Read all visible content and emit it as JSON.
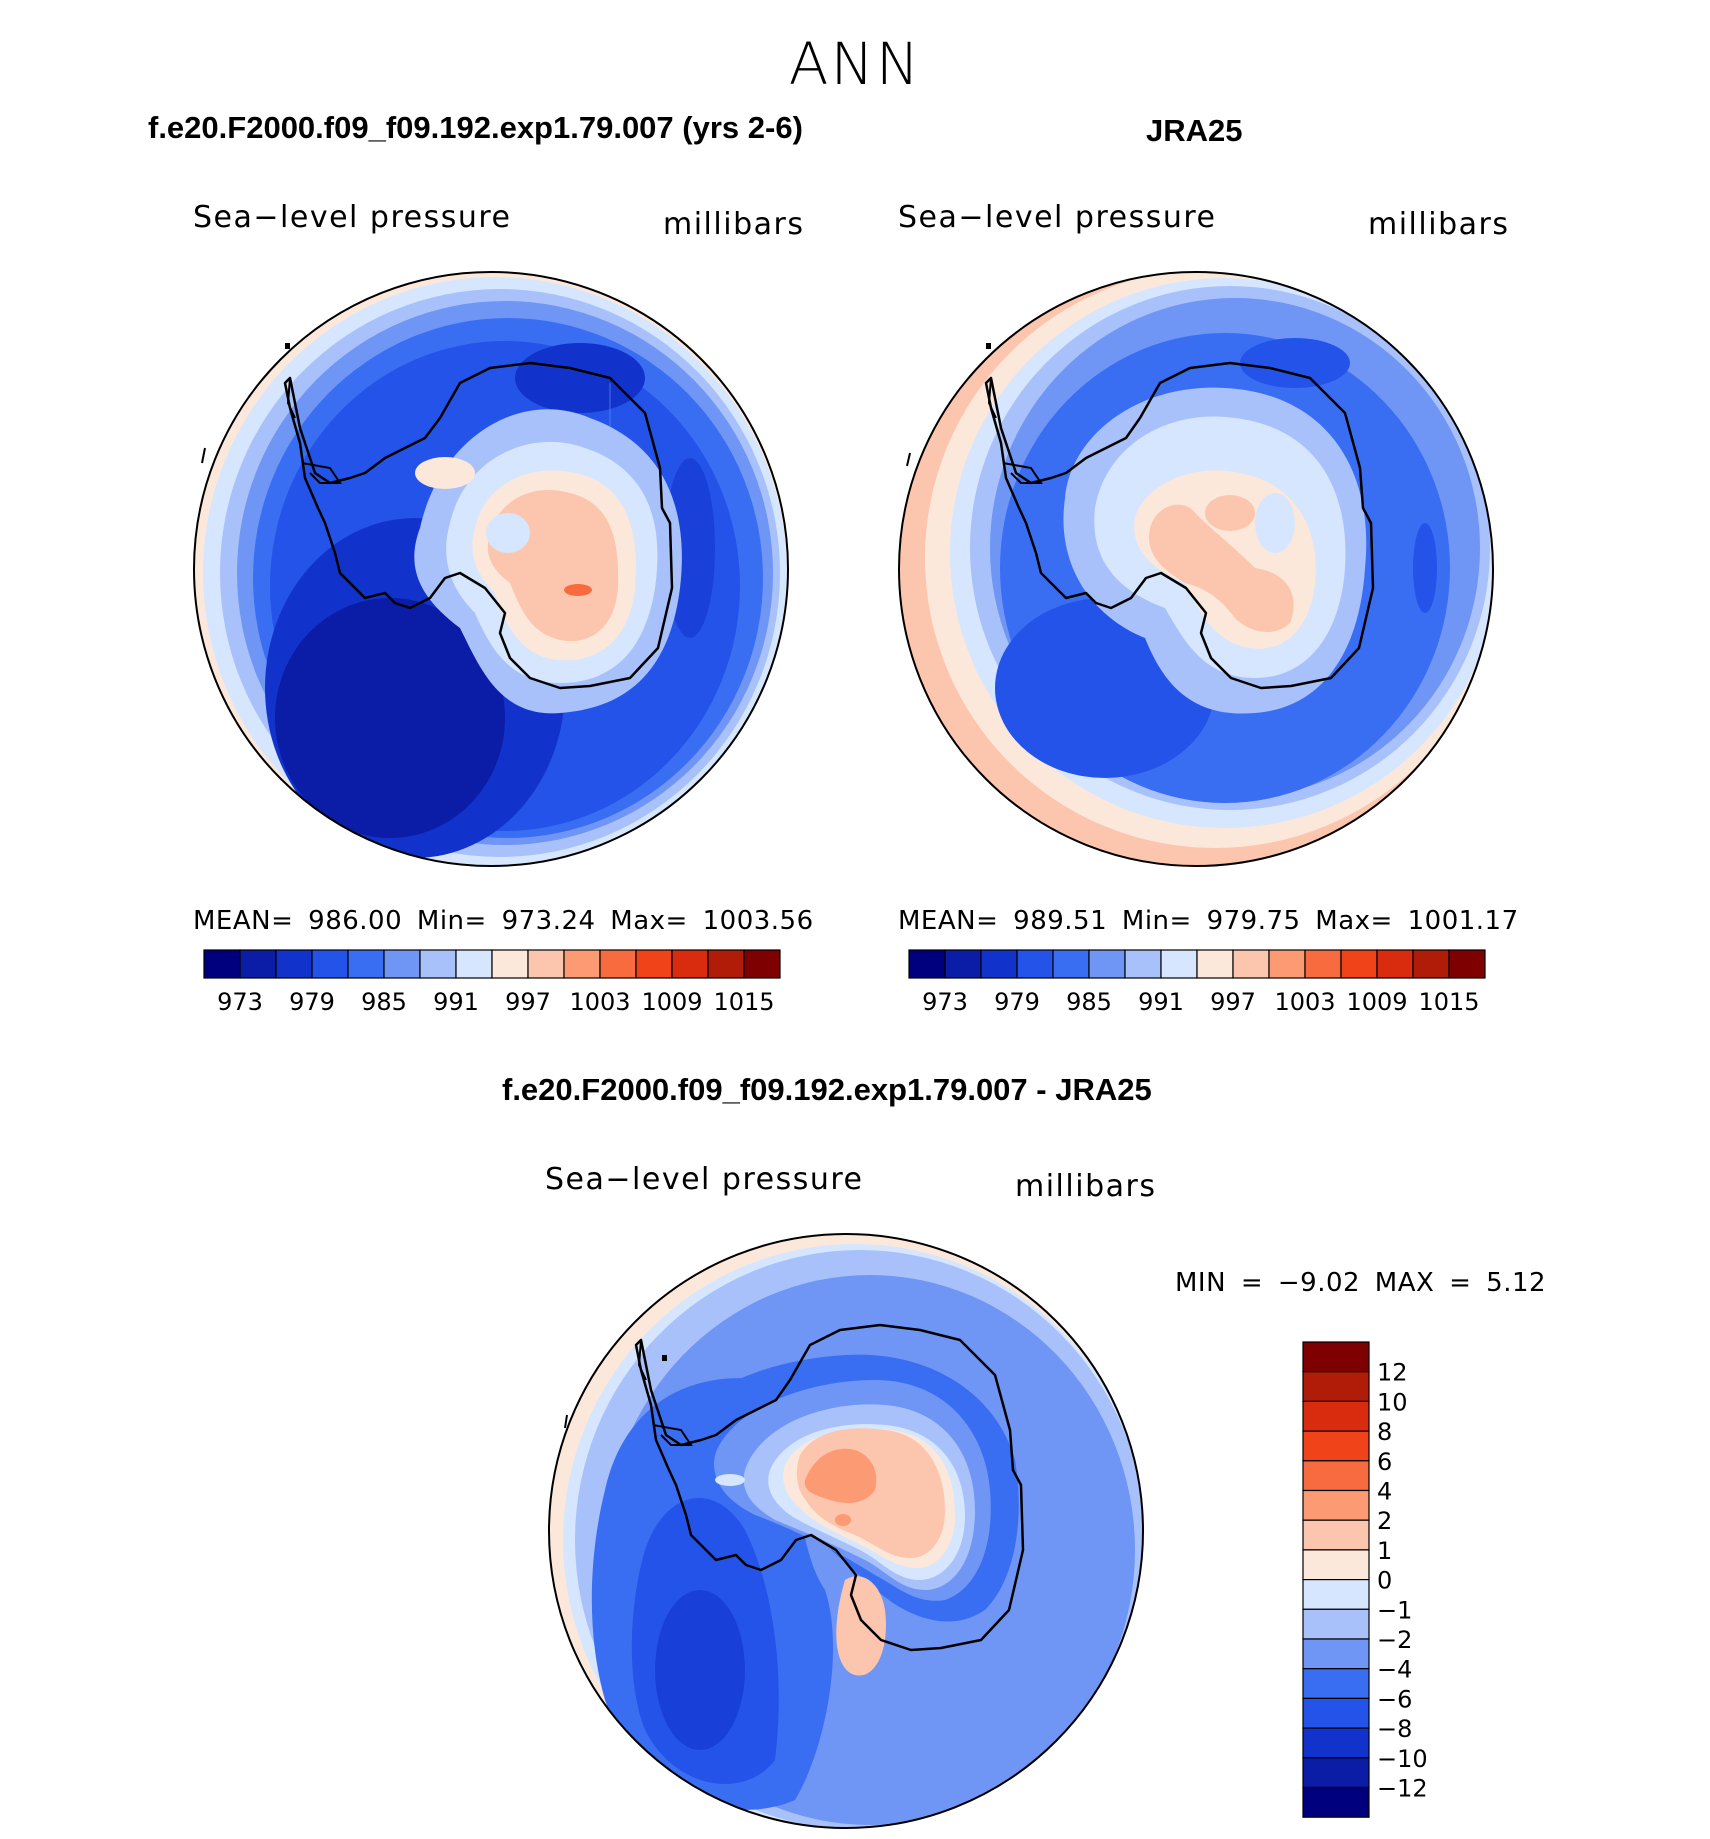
{
  "title": "ANN",
  "panels": {
    "model": {
      "case": "f.e20.F2000.f09_f09.192.exp1.79.007 (yrs 2-6)",
      "variable": "Sea−level pressure",
      "units": "millibars",
      "stats": "MEAN= 986.00   Min= 973.24   Max= 1003.56"
    },
    "obs": {
      "case": "JRA25",
      "variable": "Sea−level pressure",
      "units": "millibars",
      "stats": "MEAN= 989.51   Min= 979.75   Max= 1001.17"
    },
    "diff": {
      "case": "f.e20.F2000.f09_f09.192.exp1.79.007 - JRA25",
      "variable": "Sea−level pressure",
      "units": "millibars",
      "stats": "MIN =   −9.02 MAX =    5.12"
    }
  },
  "colorbar_abs": {
    "colors": [
      "#00007f",
      "#0b1ca6",
      "#1133cc",
      "#2453ea",
      "#3a6ef2",
      "#6f95f5",
      "#a8c1fa",
      "#d6e6fe",
      "#fce8da",
      "#fcc6ae",
      "#fc9a74",
      "#f76b3e",
      "#f0431a",
      "#d92b0d",
      "#b01c08",
      "#7f0000"
    ],
    "labels": [
      "973",
      "979",
      "985",
      "991",
      "997",
      "1003",
      "1009",
      "1015"
    ]
  },
  "colorbar_diff": {
    "colors": [
      "#00007f",
      "#0b1ca6",
      "#1133cc",
      "#2453ea",
      "#3a6ef2",
      "#6f95f5",
      "#a8c1fa",
      "#d6e6fe",
      "#fce8da",
      "#fcc6ae",
      "#fc9a74",
      "#f76b3e",
      "#f0431a",
      "#d92b0d",
      "#b01c08",
      "#7f0000"
    ],
    "labels": [
      "12",
      "10",
      "8",
      "6",
      "4",
      "2",
      "1",
      "0",
      "−1",
      "−2",
      "−4",
      "−6",
      "−8",
      "−10",
      "−12"
    ]
  }
}
